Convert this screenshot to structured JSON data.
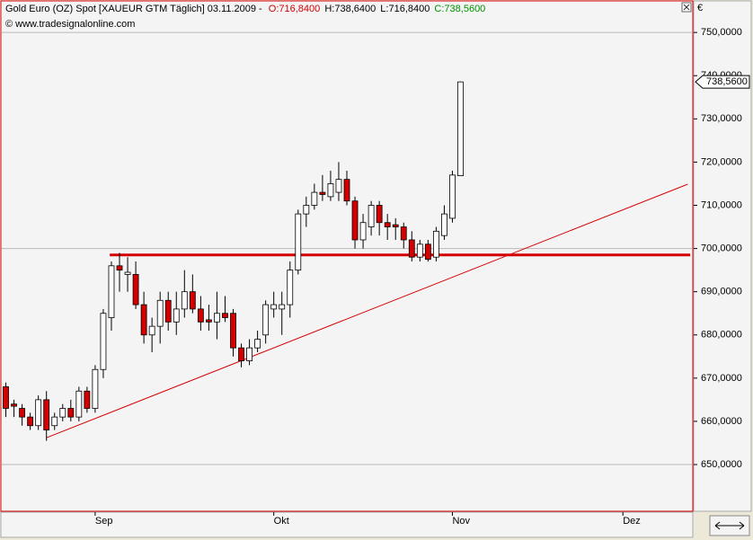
{
  "chart_data": {
    "type": "candlestick",
    "title_parts": [
      "Gold Euro (OZ) Spot [XAUEUR GTM  Täglich] 03.11.2009 -",
      "O:716,8400",
      "H:738,6400",
      "L:716,8400",
      "C:738,5600"
    ],
    "source": "© www.tradesignalonline.com",
    "currency": "€",
    "categories": [
      null,
      null,
      null,
      null,
      null,
      null,
      null,
      null,
      null,
      null,
      null,
      "Sep",
      null,
      null,
      null,
      null,
      null,
      null,
      null,
      null,
      null,
      null,
      null,
      null,
      null,
      null,
      null,
      null,
      null,
      null,
      null,
      null,
      null,
      "Okt",
      null,
      null,
      null,
      null,
      null,
      null,
      null,
      null,
      null,
      null,
      null,
      null,
      null,
      null,
      null,
      null,
      null,
      null,
      null,
      null,
      null,
      "Nov",
      null,
      null,
      null,
      null,
      null,
      null,
      null,
      null,
      null,
      null,
      null,
      null,
      null,
      null,
      null,
      null,
      null,
      null,
      null,
      null,
      "Dez",
      null,
      null,
      null,
      null,
      null,
      null,
      null,
      null
    ],
    "open": [
      668,
      664,
      663,
      661,
      659,
      665,
      659,
      661,
      663,
      661,
      667,
      663,
      672,
      684,
      696,
      694,
      694,
      687,
      680,
      682,
      688,
      683,
      686,
      690,
      686,
      683.5,
      683,
      685,
      685,
      677,
      674,
      677,
      680,
      686,
      686,
      687,
      695,
      708,
      710,
      713,
      712,
      713,
      716,
      711,
      702,
      705,
      710,
      706,
      705.5,
      705,
      702,
      698,
      701,
      698,
      703,
      707,
      716.84,
      null,
      null,
      null,
      null,
      null,
      null,
      null,
      null,
      null,
      null,
      null,
      null,
      null,
      null,
      null,
      null,
      null,
      null,
      null,
      null,
      null,
      null,
      null,
      null,
      null,
      null,
      null,
      null
    ],
    "high": [
      669,
      665,
      664,
      662,
      666,
      667,
      662,
      664,
      665,
      668,
      668,
      673,
      686,
      697,
      699,
      698,
      697,
      690,
      684,
      690,
      690,
      690,
      695,
      694,
      689,
      687,
      690,
      689,
      686,
      678,
      679,
      681,
      688,
      690,
      690,
      697,
      709,
      712,
      715,
      717,
      718,
      720,
      718,
      712,
      708,
      711,
      711,
      708,
      707,
      706,
      704,
      702,
      702,
      705,
      710,
      718,
      738.64,
      null,
      null,
      null,
      null,
      null,
      null,
      null,
      null,
      null,
      null,
      null,
      null,
      null,
      null,
      null,
      null,
      null,
      null,
      null,
      null,
      null,
      null,
      null,
      null,
      null,
      null,
      null,
      null
    ],
    "low": [
      661,
      661,
      659,
      658,
      658,
      655.5,
      658,
      660,
      660,
      660,
      662,
      662,
      670,
      681,
      690,
      690,
      686,
      678,
      676,
      678,
      681,
      680,
      684,
      685,
      681,
      681,
      679,
      683,
      675,
      672.5,
      673,
      676,
      678,
      684,
      680,
      684,
      694,
      705,
      709,
      711,
      711,
      711,
      710,
      700,
      700,
      703,
      703,
      702,
      702,
      700,
      697,
      697,
      697,
      697,
      702,
      706,
      716.84,
      null,
      null,
      null,
      null,
      null,
      null,
      null,
      null,
      null,
      null,
      null,
      null,
      null,
      null,
      null,
      null,
      null,
      null,
      null,
      null,
      null,
      null,
      null,
      null,
      null,
      null,
      null,
      null
    ],
    "close": [
      663,
      663.5,
      661,
      659,
      665,
      658,
      661,
      663,
      661,
      667,
      663,
      672,
      685,
      696,
      695,
      694.5,
      687,
      680,
      682,
      688,
      683,
      686,
      690,
      686,
      683,
      683,
      685,
      684,
      677,
      674,
      677,
      679,
      687,
      687,
      687,
      695,
      708,
      710,
      713,
      712.5,
      715,
      716,
      711,
      702,
      706,
      710,
      706,
      705,
      705,
      702,
      698,
      701,
      697.5,
      704,
      708,
      717,
      738.56,
      null,
      null,
      null,
      null,
      null,
      null,
      null,
      null,
      null,
      null,
      null,
      null,
      null,
      null,
      null,
      null,
      null,
      null,
      null,
      null,
      null,
      null,
      null,
      null,
      null,
      null,
      null,
      null
    ],
    "last_label": "738,5600",
    "up_color": "#ffffff",
    "down_color": "#d40000",
    "ylim": [
      639.4,
      757.1
    ],
    "yticks": [
      {
        "value": 650,
        "label": "650,0000"
      },
      {
        "value": 660,
        "label": "660,0000"
      },
      {
        "value": 670,
        "label": "670,0000"
      },
      {
        "value": 680,
        "label": "680,0000"
      },
      {
        "value": 690,
        "label": "690,0000"
      },
      {
        "value": 700,
        "label": "700,0000"
      },
      {
        "value": 710,
        "label": "710,0000"
      },
      {
        "value": 720,
        "label": "720,0000"
      },
      {
        "value": 730,
        "label": "730,0000"
      },
      {
        "value": 740,
        "label": "740,0000"
      },
      {
        "value": 750,
        "label": "750,0000"
      }
    ],
    "grid": [
      650,
      700,
      750
    ],
    "support_line": {
      "x": [
        12.8,
        84.3
      ],
      "value": 698.5,
      "color": "#d40000"
    },
    "trend_line": {
      "x": [
        5,
        84
      ],
      "y": [
        656.2,
        714.9
      ],
      "color": "#d40000"
    }
  }
}
